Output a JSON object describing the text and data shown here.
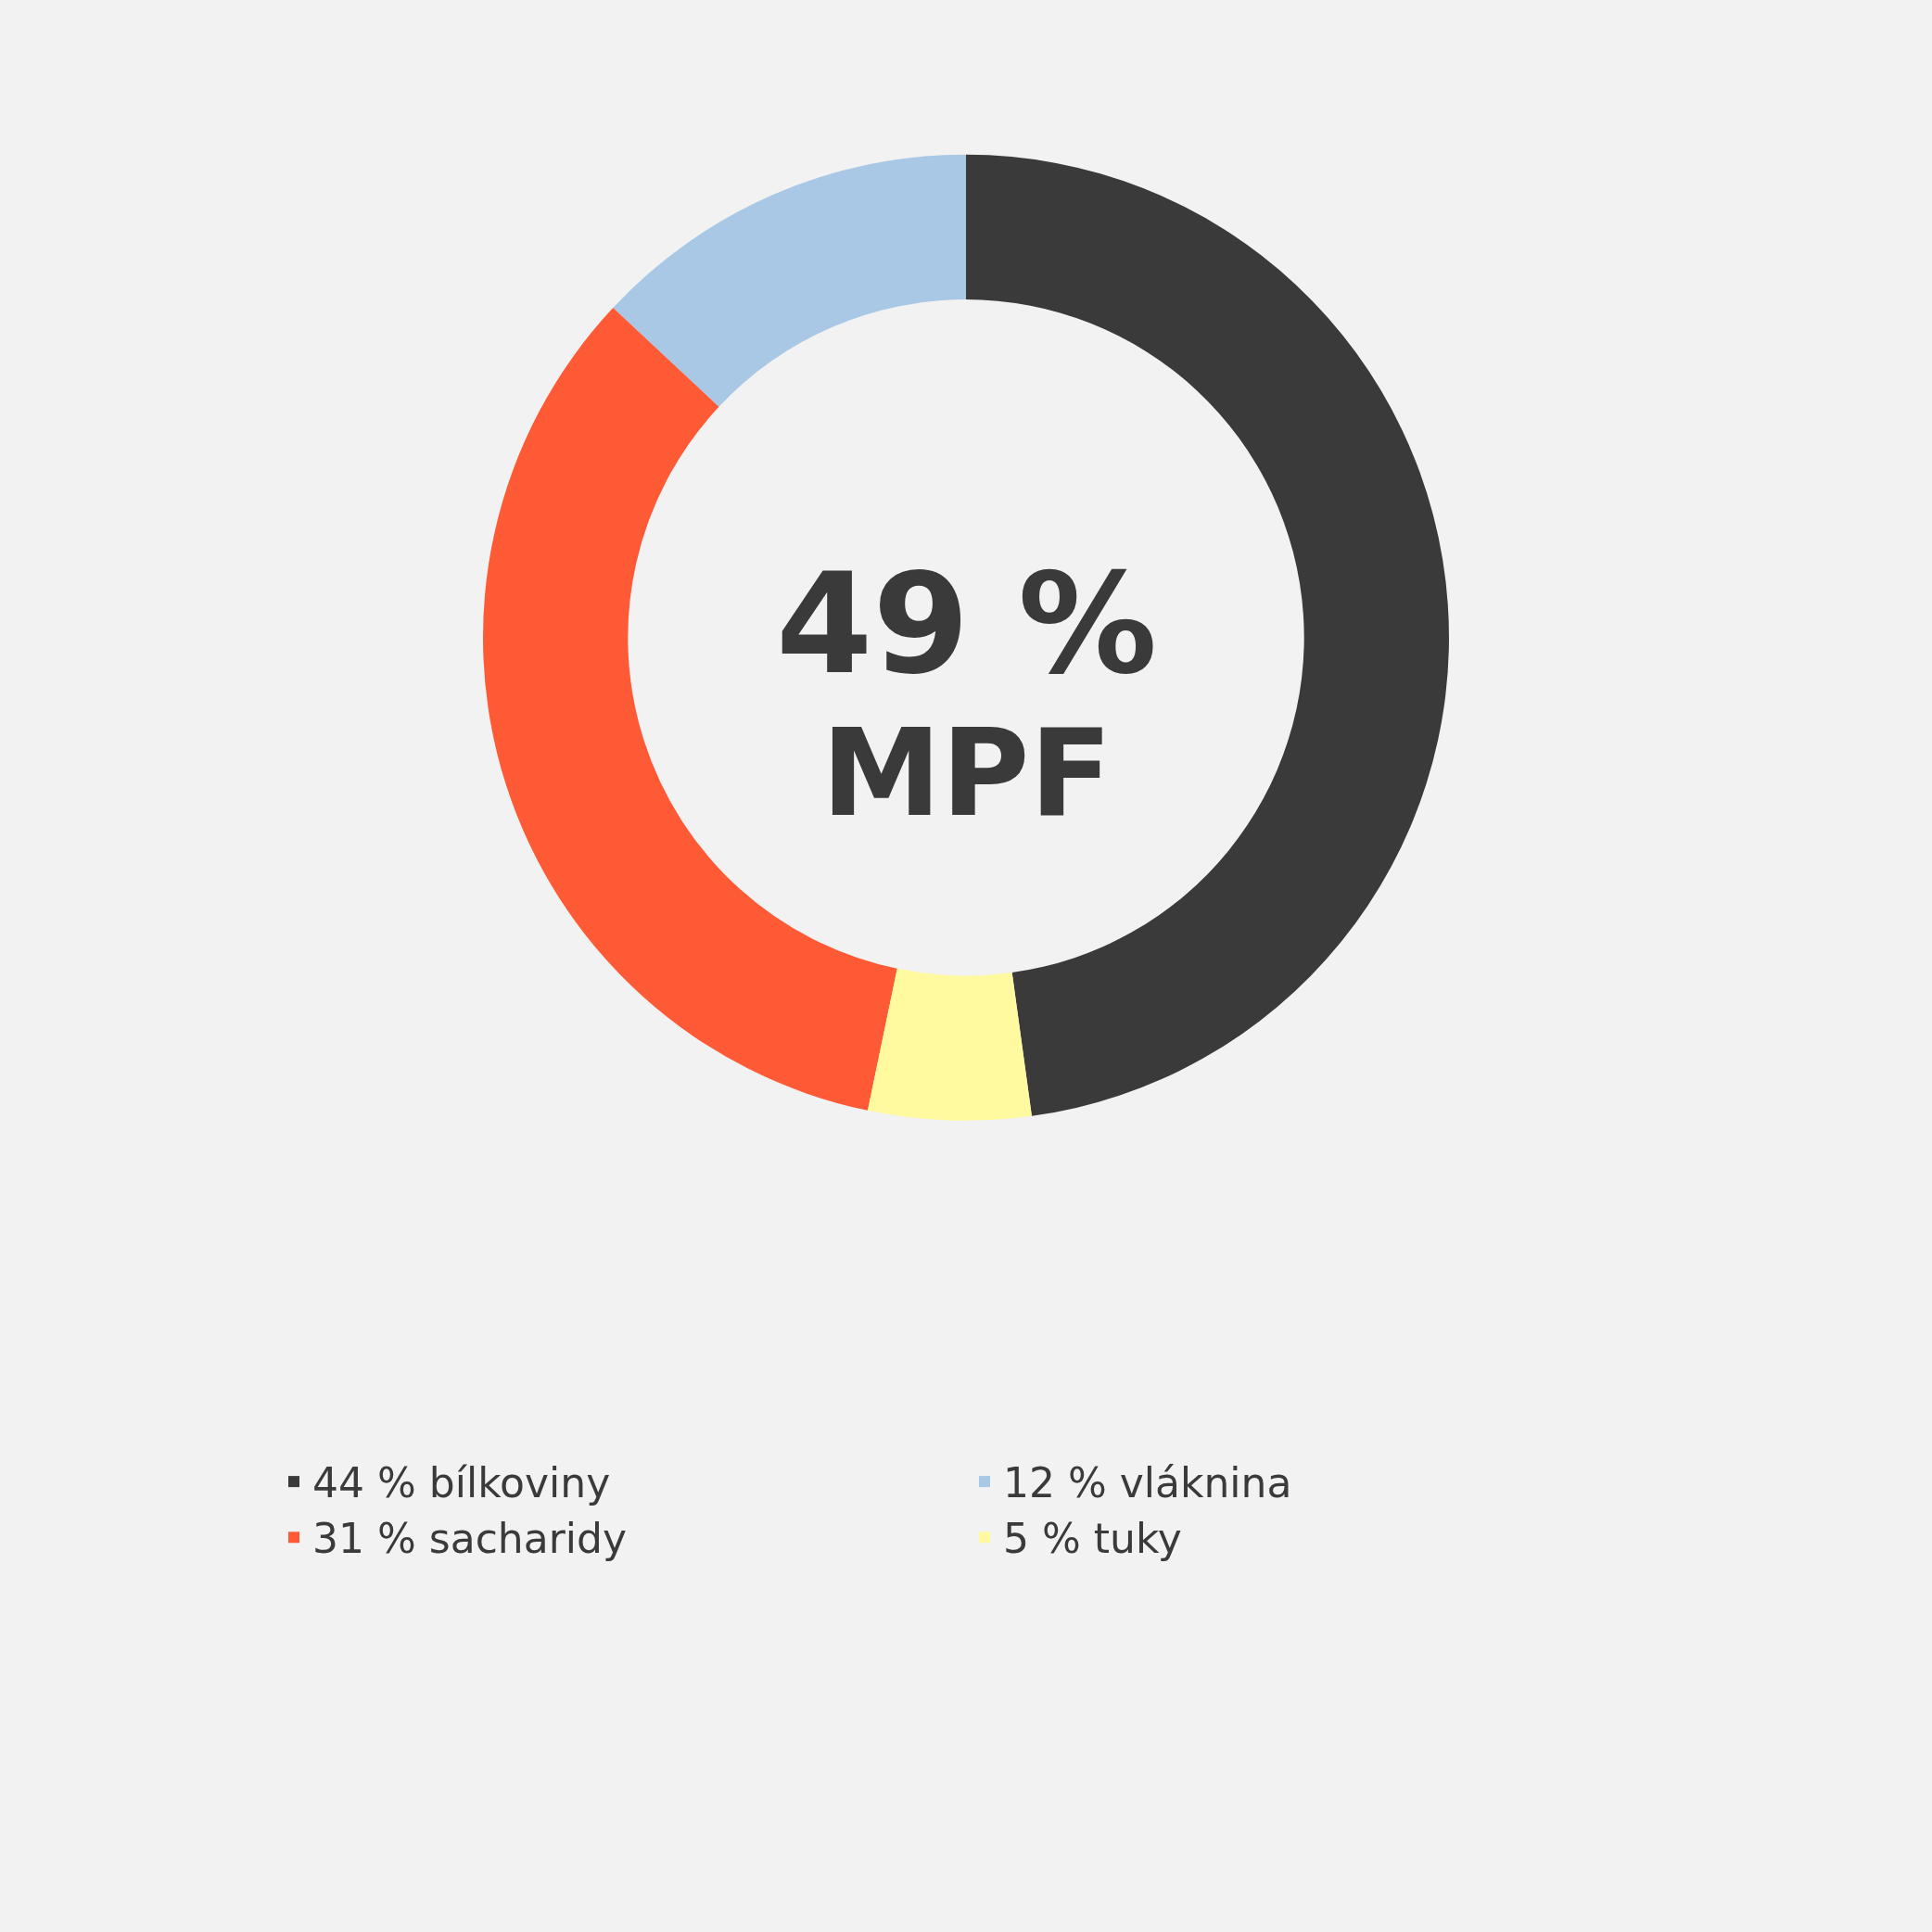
{
  "chart_data": {
    "type": "donut",
    "categories": [
      "44 % bílkoviny",
      "12 % vláknina",
      "31 % sacharidy",
      "5 % tuky"
    ],
    "values": [
      44,
      12,
      31,
      5
    ],
    "colors": [
      "#3a3a3a",
      "#a8c8e6",
      "#ff5a36",
      "#fff9a0"
    ],
    "annotations": [
      "49 %",
      "MPF"
    ],
    "legend": "bottom"
  }
}
